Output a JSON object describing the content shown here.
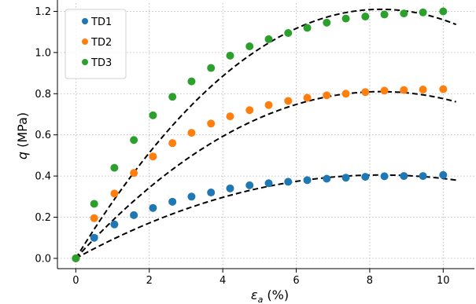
{
  "chart_data": {
    "type": "scatter",
    "x_ticks": [
      0,
      2,
      4,
      6,
      8,
      10
    ],
    "y_ticks": [
      0.0,
      0.2,
      0.4,
      0.6,
      0.8,
      1.0,
      1.2
    ],
    "xlim": [
      -0.5,
      10.85
    ],
    "ylim": [
      -0.05,
      1.24
    ],
    "grid": true,
    "legend_position": "top-left",
    "xlabel_var": "ε",
    "xlabel_sub": "a",
    "xlabel_unit": " (%)",
    "ylabel_var": "q",
    "ylabel_unit": " (MPa)",
    "series": [
      {
        "name": "TD1",
        "color": "#1f77b4",
        "x": [
          0,
          0.5,
          1.05,
          1.58,
          2.1,
          2.63,
          3.15,
          3.68,
          4.2,
          4.73,
          5.25,
          5.78,
          6.3,
          6.83,
          7.35,
          7.88,
          8.4,
          8.93,
          9.45,
          10.0
        ],
        "y": [
          0.0,
          0.1,
          0.165,
          0.21,
          0.245,
          0.275,
          0.3,
          0.32,
          0.34,
          0.355,
          0.365,
          0.372,
          0.38,
          0.387,
          0.392,
          0.396,
          0.399,
          0.4,
          0.4,
          0.405
        ],
        "fit_peak": 0.405
      },
      {
        "name": "TD2",
        "color": "#ff7f0e",
        "x": [
          0,
          0.5,
          1.05,
          1.58,
          2.1,
          2.63,
          3.15,
          3.68,
          4.2,
          4.73,
          5.25,
          5.78,
          6.3,
          6.83,
          7.35,
          7.88,
          8.4,
          8.93,
          9.45,
          10.0
        ],
        "y": [
          0.0,
          0.195,
          0.315,
          0.415,
          0.495,
          0.56,
          0.61,
          0.655,
          0.69,
          0.72,
          0.745,
          0.765,
          0.78,
          0.792,
          0.8,
          0.808,
          0.815,
          0.818,
          0.82,
          0.822
        ],
        "fit_peak": 0.81
      },
      {
        "name": "TD3",
        "color": "#2ca02c",
        "x": [
          0,
          0.5,
          1.05,
          1.58,
          2.1,
          2.63,
          3.15,
          3.68,
          4.2,
          4.73,
          5.25,
          5.78,
          6.3,
          6.83,
          7.35,
          7.88,
          8.4,
          8.93,
          9.45,
          10.0
        ],
        "y": [
          0.0,
          0.265,
          0.44,
          0.575,
          0.695,
          0.785,
          0.86,
          0.925,
          0.985,
          1.03,
          1.065,
          1.095,
          1.12,
          1.145,
          1.165,
          1.175,
          1.185,
          1.19,
          1.195,
          1.2
        ],
        "fit_peak": 1.21
      }
    ],
    "fit_peak_x": 8.3
  }
}
